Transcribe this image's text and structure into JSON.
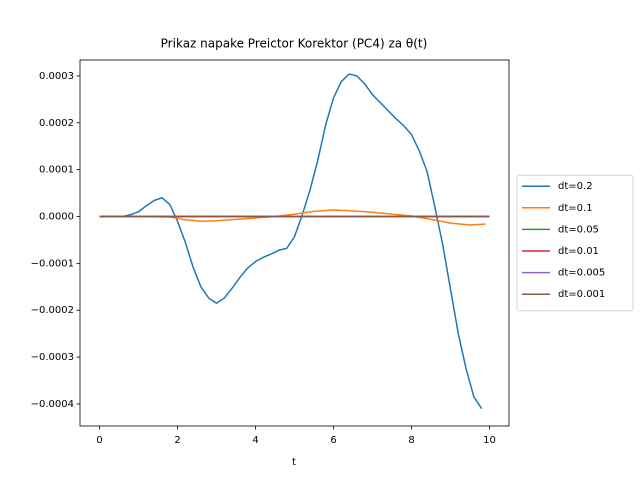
{
  "chart_data": {
    "type": "line",
    "title": "Prikaz napake Preictor Korektor (PC4) za θ(t)",
    "xlabel": "t",
    "xlim": [
      -0.5,
      10.5
    ],
    "xticks": [
      0,
      2,
      4,
      6,
      8,
      10
    ],
    "ylim": [
      -0.000447,
      0.000334
    ],
    "yticks": [
      0.0003,
      0.0002,
      0.0001,
      {
        "value": 0,
        "label": "0.0000"
      },
      {
        "value": -0.0001,
        "label": "−0.0001"
      },
      {
        "value": -0.0002,
        "label": "−0.0002"
      },
      {
        "value": -0.0003,
        "label": "−0.0003"
      },
      {
        "value": -0.0004,
        "label": "−0.0004"
      }
    ],
    "legend": "right",
    "series": [
      {
        "name": "dt=0.2",
        "color": "#1f77b4",
        "x": [
          0,
          0.2,
          0.4,
          0.6,
          0.8,
          1.0,
          1.2,
          1.4,
          1.6,
          1.8,
          2.0,
          2.2,
          2.4,
          2.6,
          2.8,
          3.0,
          3.2,
          3.4,
          3.6,
          3.8,
          4.0,
          4.2,
          4.4,
          4.6,
          4.8,
          5.0,
          5.2,
          5.4,
          5.6,
          5.8,
          6.0,
          6.2,
          6.4,
          6.6,
          6.8,
          7.0,
          7.2,
          7.4,
          7.6,
          7.8,
          8.0,
          8.2,
          8.4,
          8.6,
          8.8,
          9.0,
          9.2,
          9.4,
          9.6,
          9.8
        ],
        "values": [
          0,
          0,
          0,
          0,
          4e-06,
          1e-05,
          2.3e-05,
          3.4e-05,
          4e-05,
          2.6e-05,
          -1e-05,
          -5.5e-05,
          -0.000108,
          -0.00015,
          -0.000174,
          -0.000185,
          -0.000174,
          -0.000153,
          -0.00013,
          -0.00011,
          -9.6e-05,
          -8.7e-05,
          -8e-05,
          -7.2e-05,
          -6.8e-05,
          -4.3e-05,
          4e-06,
          5.7e-05,
          0.000121,
          0.000196,
          0.000253,
          0.000288,
          0.000304,
          0.0003,
          0.000283,
          0.00026,
          0.000243,
          0.000226,
          0.000209,
          0.000194,
          0.000175,
          0.00014,
          9.6e-05,
          2e-05,
          -6e-05,
          -0.000155,
          -0.00025,
          -0.000325,
          -0.000385,
          -0.00041
        ]
      },
      {
        "name": "dt=0.1",
        "color": "#ff7f0e",
        "x": [
          0,
          1.0,
          1.8,
          2.2,
          2.6,
          3.0,
          3.5,
          4.0,
          4.5,
          5.0,
          5.5,
          6.0,
          6.5,
          7.0,
          7.5,
          8.0,
          8.5,
          9.0,
          9.5,
          9.9
        ],
        "values": [
          0,
          0,
          -1e-06,
          -7e-06,
          -1e-05,
          -9e-06,
          -6e-06,
          -3e-06,
          0,
          5e-06,
          1.1e-05,
          1.4e-05,
          1.2e-05,
          9e-06,
          5e-06,
          1e-06,
          -6e-06,
          -1.4e-05,
          -1.8e-05,
          -1.6e-05
        ]
      },
      {
        "name": "dt=0.05",
        "color": "#2ca02c",
        "x": [
          0,
          10
        ],
        "values": [
          0,
          0
        ]
      },
      {
        "name": "dt=0.01",
        "color": "#d62728",
        "x": [
          0,
          10
        ],
        "values": [
          0,
          0
        ]
      },
      {
        "name": "dt=0.005",
        "color": "#9467bd",
        "x": [
          0,
          10
        ],
        "values": [
          0,
          0
        ]
      },
      {
        "name": "dt=0.001",
        "color": "#8c564b",
        "x": [
          0,
          10
        ],
        "values": [
          0,
          0
        ]
      }
    ]
  }
}
